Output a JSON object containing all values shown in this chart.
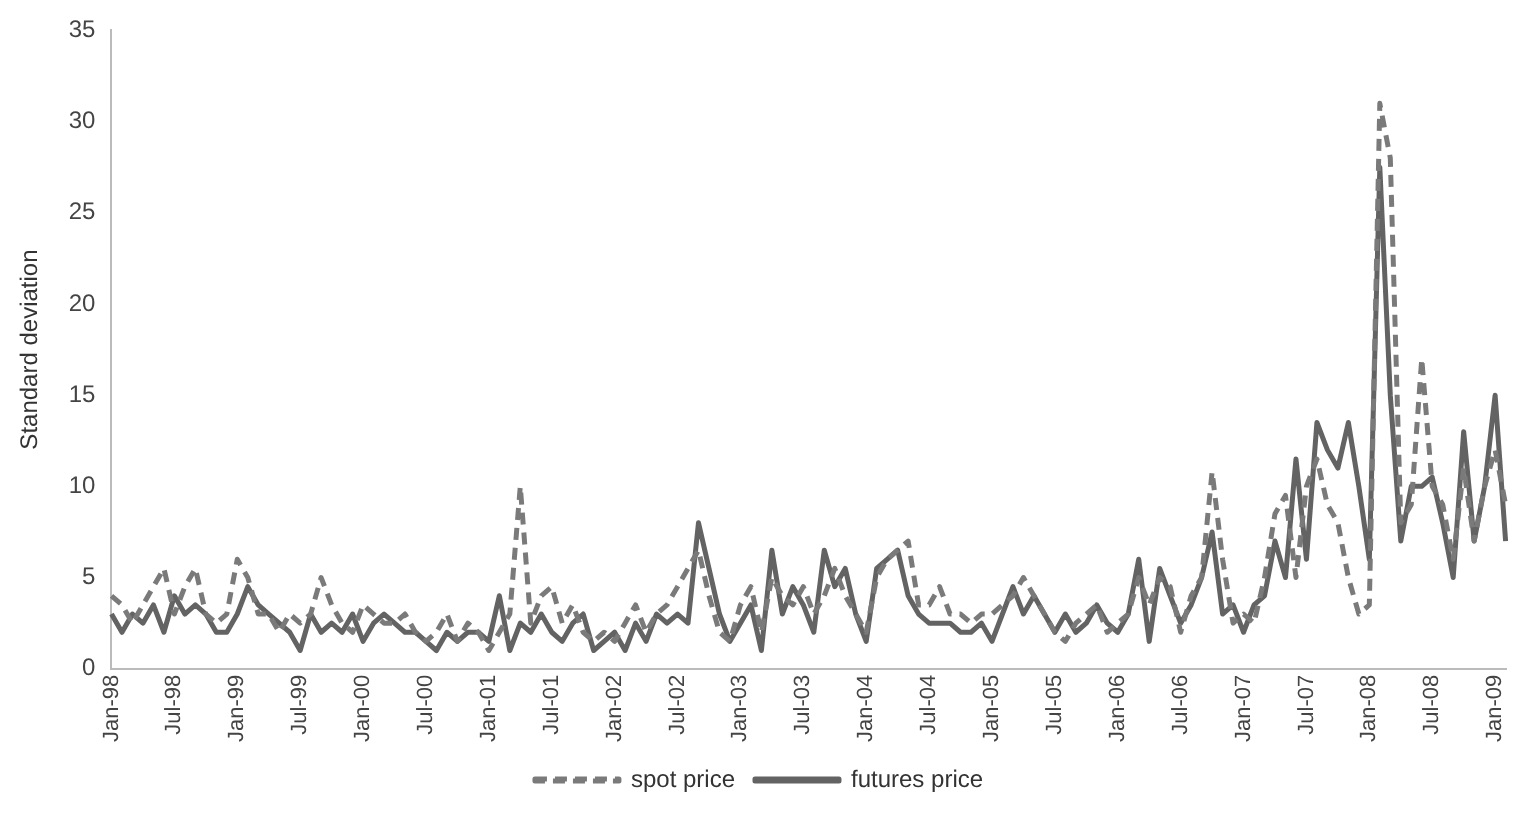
{
  "chart_data": {
    "type": "line",
    "ylabel": "Standard deviation",
    "categories": [
      "Jan-98",
      null,
      null,
      null,
      null,
      null,
      "Jul-98",
      null,
      null,
      null,
      null,
      null,
      "Jan-99",
      null,
      null,
      null,
      null,
      null,
      "Jul-99",
      null,
      null,
      null,
      null,
      null,
      "Jan-00",
      null,
      null,
      null,
      null,
      null,
      "Jul-00",
      null,
      null,
      null,
      null,
      null,
      "Jan-01",
      null,
      null,
      null,
      null,
      null,
      "Jul-01",
      null,
      null,
      null,
      null,
      null,
      "Jan-02",
      null,
      null,
      null,
      null,
      null,
      "Jul-02",
      null,
      null,
      null,
      null,
      null,
      "Jan-03",
      null,
      null,
      null,
      null,
      null,
      "Jul-03",
      null,
      null,
      null,
      null,
      null,
      "Jan-04",
      null,
      null,
      null,
      null,
      null,
      "Jul-04",
      null,
      null,
      null,
      null,
      null,
      "Jan-05",
      null,
      null,
      null,
      null,
      null,
      "Jul-05",
      null,
      null,
      null,
      null,
      null,
      "Jan-06",
      null,
      null,
      null,
      null,
      null,
      "Jul-06",
      null,
      null,
      null,
      null,
      null,
      "Jan-07",
      null,
      null,
      null,
      null,
      null,
      "Jul-07",
      null,
      null,
      null,
      null,
      null,
      "Jan-08",
      null,
      null,
      null,
      null,
      null,
      "Jul-08",
      null,
      null,
      null,
      null,
      null,
      "Jan-09",
      null
    ],
    "series": [
      {
        "name": "spot price",
        "color": "#7a7a7a",
        "line_style": "dashed",
        "values": [
          4,
          3.5,
          2.5,
          3.5,
          4.5,
          5.5,
          3,
          4.5,
          5.5,
          3,
          2.5,
          3,
          6,
          5,
          3,
          3,
          2,
          3,
          2.5,
          3,
          5,
          3.5,
          2.5,
          2,
          3.5,
          3,
          2.5,
          2.5,
          3,
          2,
          1.5,
          2,
          3,
          1.5,
          2.5,
          2,
          1,
          2,
          3,
          10,
          2.5,
          4,
          4.5,
          2.5,
          3.5,
          2,
          1.5,
          2,
          1.5,
          2.5,
          3.5,
          2,
          3,
          3.5,
          4.5,
          5.5,
          6.5,
          4,
          2,
          1.5,
          3.5,
          4.5,
          2,
          5,
          4,
          3.5,
          4.5,
          3,
          4,
          5.5,
          4,
          3,
          2,
          5,
          6,
          6.5,
          7,
          3.5,
          3.5,
          4.5,
          3,
          3,
          2.5,
          3,
          3,
          3.5,
          4,
          5,
          4,
          3,
          2,
          1.5,
          2.5,
          3,
          3.5,
          2,
          2.5,
          3,
          5,
          3.5,
          5,
          4.5,
          2,
          4,
          5,
          10.8,
          6,
          2.5,
          3,
          2.5,
          5,
          8.5,
          9.5,
          5,
          10,
          11.5,
          9,
          8,
          5,
          3,
          3.5,
          31,
          28,
          8,
          9,
          17,
          10,
          9,
          6,
          11,
          7,
          10,
          12,
          9
        ]
      },
      {
        "name": "futures price",
        "color": "#636363",
        "line_style": "solid",
        "values": [
          3,
          2,
          3,
          2.5,
          3.5,
          2,
          4,
          3,
          3.5,
          3,
          2,
          2,
          3,
          4.5,
          3.5,
          3,
          2.5,
          2,
          1,
          3,
          2,
          2.5,
          2,
          3,
          1.5,
          2.5,
          3,
          2.5,
          2,
          2,
          1.5,
          1,
          2,
          1.5,
          2,
          2,
          1.5,
          4,
          1,
          2.5,
          2,
          3,
          2,
          1.5,
          2.5,
          3,
          1,
          1.5,
          2,
          1,
          2.5,
          1.5,
          3,
          2.5,
          3,
          2.5,
          8,
          5.5,
          3,
          1.5,
          2.5,
          3.5,
          1,
          6.5,
          3,
          4.5,
          3.5,
          2,
          6.5,
          4.5,
          5.5,
          3,
          1.5,
          5.5,
          6,
          6.5,
          4,
          3,
          2.5,
          2.5,
          2.5,
          2,
          2,
          2.5,
          1.5,
          3,
          4.5,
          3,
          4,
          3,
          2,
          3,
          2,
          2.5,
          3.5,
          2.5,
          2,
          3,
          6,
          1.5,
          5.5,
          4,
          2.5,
          3.5,
          5,
          7.5,
          3,
          3.5,
          2,
          3.5,
          4,
          7,
          5,
          11.5,
          6,
          13.5,
          12,
          11,
          13.5,
          10,
          6,
          27.5,
          15,
          7,
          10,
          10,
          10.5,
          8,
          5,
          13,
          7,
          10,
          15,
          7
        ]
      }
    ],
    "ylim": [
      0,
      35
    ],
    "yticks": [
      0,
      5,
      10,
      15,
      20,
      25,
      30,
      35
    ],
    "grid": false,
    "legend": "bottom",
    "marker": "none"
  }
}
